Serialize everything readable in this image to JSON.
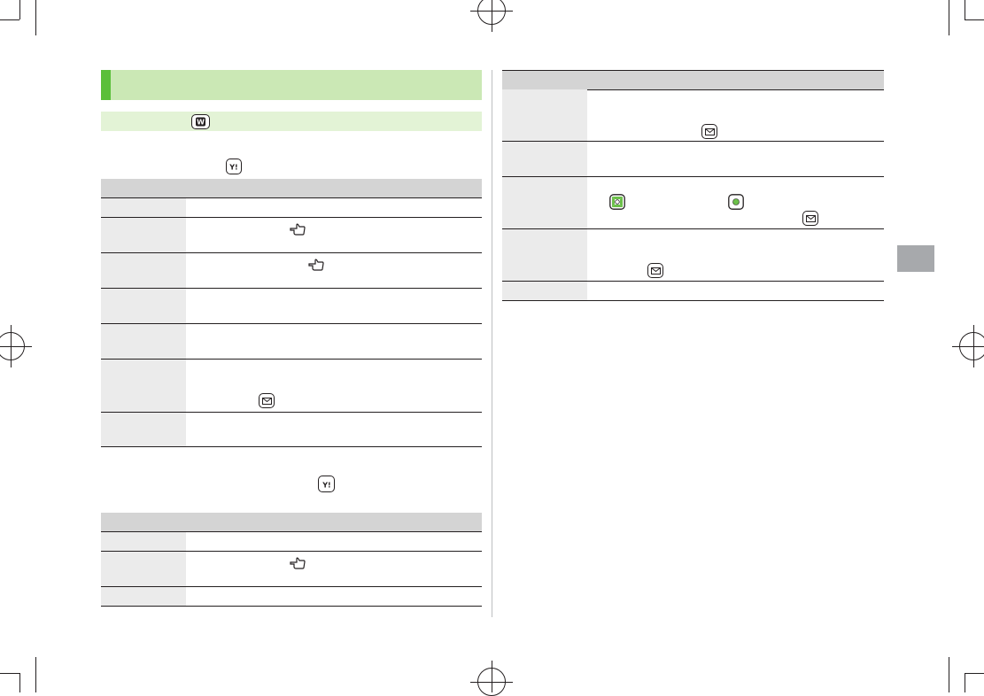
{
  "page": {
    "section_title": "",
    "tab_label": ""
  },
  "colors": {
    "title_bar": "#cbe8b5",
    "title_accent": "#5bbf3a",
    "sub_bar": "#e3f3d6",
    "table_header": "#d4d4d4",
    "row_label": "#ebebeb",
    "tab_marker": "#a7a9ac",
    "nav_key_green": "#6cc04a"
  },
  "icons": {
    "w_key": "w-key-icon",
    "yahoo_key": "yahoo-key-icon",
    "mail_key": "mail-key-icon",
    "pointer_hand": "pointing-hand-icon",
    "nav_key": "multi-selector-icon",
    "center_key": "center-key-icon"
  }
}
